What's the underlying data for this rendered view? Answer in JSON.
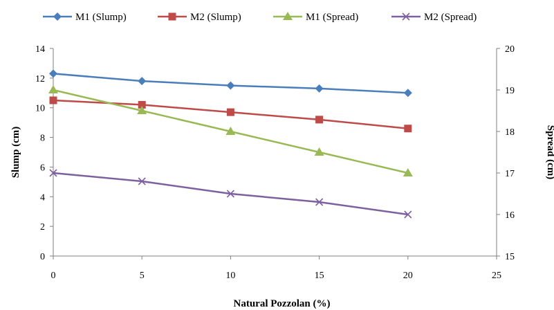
{
  "chart_data": {
    "type": "line",
    "title": "",
    "xlabel": "Natural Pozzolan (%)",
    "ylabel": "Slump (cm)",
    "y2label": "Spread (cm)",
    "xlim": [
      0,
      25
    ],
    "ylim": [
      0,
      14
    ],
    "y2lim": [
      15,
      20
    ],
    "xticks": [
      "0",
      "5",
      "10",
      "15",
      "20",
      "25"
    ],
    "yticks": [
      "0",
      "2",
      "4",
      "6",
      "8",
      "10",
      "12",
      "14"
    ],
    "y2ticks": [
      "15",
      "16",
      "17",
      "18",
      "19",
      "20"
    ],
    "grid": false,
    "legend_position": "top",
    "x": [
      0,
      5,
      10,
      15,
      20
    ],
    "series": [
      {
        "name": "M1 (Slump)",
        "axis": "left",
        "marker": "diamond",
        "color": "#4a7ebb",
        "values": [
          12.3,
          11.8,
          11.5,
          11.3,
          11.0
        ]
      },
      {
        "name": "M2 (Slump)",
        "axis": "left",
        "marker": "square",
        "color": "#be4b48",
        "values": [
          10.5,
          10.2,
          9.7,
          9.2,
          8.6
        ]
      },
      {
        "name": "M1 (Spread)",
        "axis": "right",
        "marker": "triangle",
        "color": "#98b954",
        "values": [
          19.0,
          18.5,
          18.0,
          17.5,
          17.0
        ]
      },
      {
        "name": "M2 (Spread)",
        "axis": "right",
        "marker": "x",
        "color": "#7d60a0",
        "values": [
          17.0,
          16.8,
          16.5,
          16.3,
          16.0
        ]
      }
    ]
  }
}
